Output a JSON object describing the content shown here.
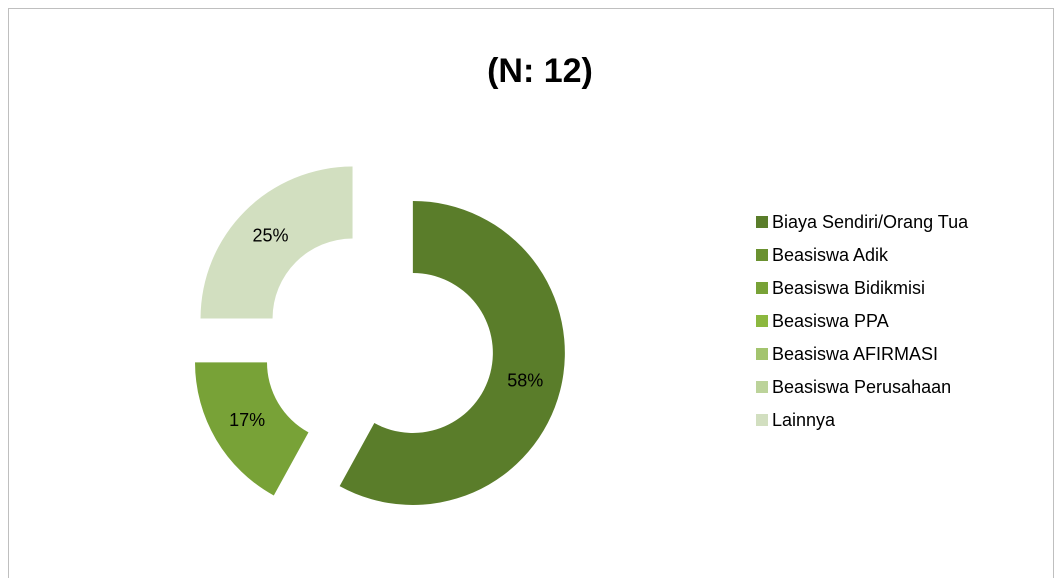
{
  "chart_data": {
    "type": "pie",
    "title": "(N: 12)",
    "categories": [
      "Biaya Sendiri/Orang Tua",
      "Beasiswa Adik",
      "Beasiswa Bidikmisi",
      "Beasiswa PPA",
      "Beasiswa AFIRMASI",
      "Beasiswa Perusahaan",
      "Lainnya"
    ],
    "values": [
      58,
      0,
      17,
      0,
      0,
      0,
      25
    ],
    "value_labels": [
      "58%",
      null,
      "17%",
      null,
      null,
      null,
      "25%"
    ],
    "colors": [
      "#5a7d2a",
      "#6a9130",
      "#78a237",
      "#8cb83f",
      "#a3c46e",
      "#bcd39a",
      "#d2dfc0"
    ],
    "legend": "right",
    "donut": true
  }
}
